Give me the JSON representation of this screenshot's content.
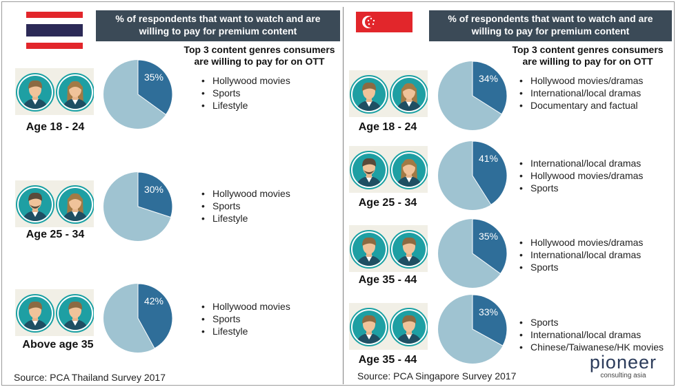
{
  "colors": {
    "header_bg": "#3b4a57",
    "pie_highlight": "#2f6e99",
    "pie_rest": "#9fc3d1",
    "avatar_ring": "#1aa0a3"
  },
  "thailand": {
    "flag": "thailand-flag",
    "title_lines": [
      "% of respondents that want to watch and are",
      "willing to pay for premium content"
    ],
    "subtitle_lines": [
      "Top 3 content genres consumers",
      "are willing to pay for on OTT"
    ],
    "groups": [
      {
        "age": "Age 18 - 24",
        "percent": 35,
        "label": "35%",
        "genres": [
          "Hollywood movies",
          "Sports",
          "Lifestyle"
        ]
      },
      {
        "age": "Age 25 - 34",
        "percent": 30,
        "label": "30%",
        "genres": [
          "Hollywood movies",
          "Sports",
          "Lifestyle"
        ]
      },
      {
        "age": "Above age 35",
        "percent": 42,
        "label": "42%",
        "genres": [
          "Hollywood movies",
          "Sports",
          "Lifestyle"
        ]
      }
    ],
    "source": "Source: PCA Thailand Survey 2017"
  },
  "singapore": {
    "flag": "singapore-flag",
    "title_lines": [
      "% of respondents that want to watch and are",
      "willing to pay for premium content"
    ],
    "subtitle_lines": [
      "Top 3 content genres consumers",
      "are willing to pay for on OTT"
    ],
    "groups": [
      {
        "age": "Age 18 - 24",
        "percent": 34,
        "label": "34%",
        "genres": [
          "Hollywood movies/dramas",
          "International/local dramas",
          "Documentary and factual"
        ]
      },
      {
        "age": "Age 25 - 34",
        "percent": 41,
        "label": "41%",
        "genres": [
          "International/local dramas",
          "Hollywood movies/dramas",
          "Sports"
        ]
      },
      {
        "age": "Age 35 - 44",
        "percent": 35,
        "label": "35%",
        "genres": [
          "Hollywood movies/dramas",
          "International/local dramas",
          "Sports"
        ]
      },
      {
        "age": "Age 35 - 44",
        "percent": 33,
        "label": "33%",
        "genres": [
          "Sports",
          "International/local dramas",
          "Chinese/Taiwanese/HK movies"
        ]
      }
    ],
    "source": "Source: PCA Singapore Survey 2017"
  },
  "brand": {
    "name": "pioneer",
    "tagline": "consulting asia"
  },
  "chart_data": [
    {
      "type": "pie",
      "title": "% of respondents that want to watch and are willing to pay for premium content (Thailand)",
      "categories": [
        "Age 18 - 24",
        "Age 25 - 34",
        "Above age 35"
      ],
      "values": [
        35,
        30,
        42
      ],
      "units": "%"
    },
    {
      "type": "pie",
      "title": "% of respondents that want to watch and are willing to pay for premium content (Singapore)",
      "categories": [
        "Age 18 - 24",
        "Age 25 - 34",
        "Age 35 - 44",
        "Age 35 - 44"
      ],
      "values": [
        34,
        41,
        35,
        33
      ],
      "units": "%"
    }
  ]
}
